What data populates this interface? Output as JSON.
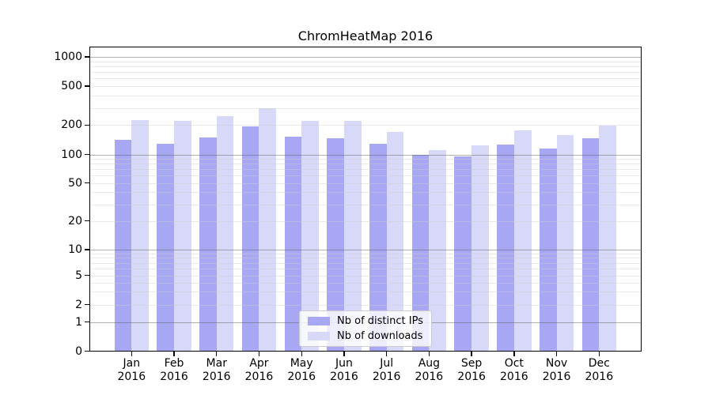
{
  "title": "ChromHeatMap 2016",
  "chart_data": {
    "type": "bar",
    "title": "ChromHeatMap 2016",
    "categories": [
      "Jan 2016",
      "Feb 2016",
      "Mar 2016",
      "Apr 2016",
      "May 2016",
      "Jun 2016",
      "Jul 2016",
      "Aug 2016",
      "Sep 2016",
      "Oct 2016",
      "Nov 2016",
      "Dec 2016"
    ],
    "series": [
      {
        "name": "Nb of distinct IPs",
        "color": "#a7a7f3",
        "values": [
          143,
          131,
          151,
          196,
          154,
          149,
          130,
          100,
          97,
          128,
          116,
          149
        ]
      },
      {
        "name": "Nb of downloads",
        "color": "#d8d8f8",
        "values": [
          229,
          225,
          251,
          298,
          225,
          222,
          172,
          111,
          125,
          177,
          159,
          200
        ]
      }
    ],
    "yscale": "symlog",
    "yticks": [
      0,
      1,
      2,
      5,
      10,
      20,
      50,
      100,
      200,
      500,
      1000
    ],
    "ylim": [
      0,
      1270
    ],
    "grid": true,
    "legend_position": "lower center"
  },
  "colors": {
    "axis": "#000000",
    "major_grid": "#b0b0b0",
    "minor_grid": "#e9e9e9",
    "background": "#ffffff"
  }
}
